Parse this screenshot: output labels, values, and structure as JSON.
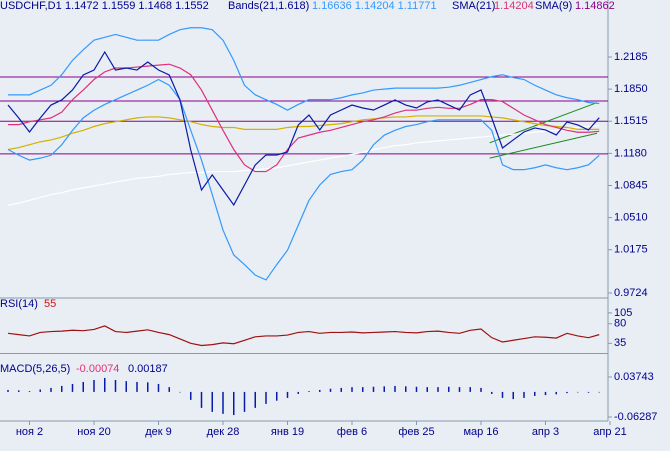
{
  "chart_data": [
    {
      "type": "line",
      "title": "USDCHF,D1",
      "ohlc": "1.1472 1.1559 1.1468 1.1552",
      "indicators": [
        {
          "name": "Bands(21,1.618)",
          "readout": "1.16636 1.14204 1.11771"
        },
        {
          "name": "SMA(21)",
          "readout": "1.14204"
        },
        {
          "name": "SMA(9)",
          "readout": "1.14862"
        }
      ],
      "categories": [
        null,
        null,
        "ноя 2",
        null,
        null,
        null,
        null,
        null,
        "ноя 20",
        null,
        null,
        null,
        null,
        null,
        "дек 9",
        null,
        null,
        null,
        null,
        null,
        "дек 28",
        null,
        null,
        null,
        null,
        null,
        "янв 19",
        null,
        null,
        null,
        null,
        null,
        "фев 6",
        null,
        null,
        null,
        null,
        null,
        "фев 25",
        null,
        null,
        null,
        null,
        null,
        "мар 16",
        null,
        null,
        null,
        null,
        null,
        "апр 3",
        null,
        null,
        null,
        null,
        null,
        "апр 21"
      ],
      "series": [
        {
          "color": "#ffffff",
          "values": [
            1.064,
            1.066,
            1.069,
            1.072,
            1.075,
            1.077,
            1.08,
            1.082,
            1.084,
            1.086,
            1.088,
            1.09,
            1.092,
            1.093,
            1.094,
            1.096,
            1.097,
            1.098,
            1.098,
            1.099,
            1.099,
            1.099,
            1.1,
            1.101,
            1.102,
            1.103,
            1.105,
            1.107,
            1.109,
            1.111,
            1.113,
            1.115,
            1.117,
            1.119,
            1.122,
            1.124,
            1.126,
            1.127,
            1.129,
            1.13,
            1.131,
            1.132,
            1.133,
            1.134,
            1.135,
            1.136,
            1.137,
            1.138,
            1.139,
            1.14,
            1.141,
            1.142,
            1.143,
            1.145,
            1.146,
            1.147,
            null
          ]
        },
        {
          "color": "#d4b000",
          "values": [
            1.122,
            1.124,
            1.127,
            1.13,
            1.132,
            1.135,
            1.139,
            1.142,
            1.146,
            1.149,
            1.151,
            1.153,
            1.155,
            1.156,
            1.156,
            1.155,
            1.153,
            1.151,
            1.148,
            1.146,
            1.145,
            1.145,
            1.143,
            1.143,
            1.143,
            1.143,
            1.145,
            1.146,
            1.146,
            1.147,
            1.148,
            1.149,
            1.151,
            1.153,
            1.154,
            1.155,
            1.156,
            1.156,
            1.157,
            1.157,
            1.157,
            1.157,
            1.157,
            1.157,
            1.157,
            1.156,
            1.155,
            1.153,
            1.151,
            1.149,
            1.147,
            1.146,
            1.145,
            1.143,
            1.143,
            1.143,
            null
          ]
        },
        {
          "color": "#3399ff",
          "values": [
            1.179,
            1.179,
            1.179,
            1.184,
            1.189,
            1.2,
            1.215,
            1.226,
            1.236,
            1.239,
            1.242,
            1.239,
            1.236,
            1.236,
            1.236,
            1.242,
            1.247,
            1.249,
            1.249,
            1.247,
            1.236,
            1.215,
            1.189,
            1.179,
            1.174,
            1.169,
            1.163,
            1.169,
            1.174,
            1.174,
            1.174,
            1.176,
            1.179,
            1.181,
            1.184,
            1.185,
            1.186,
            1.186,
            1.186,
            1.186,
            1.186,
            1.187,
            1.189,
            1.192,
            1.195,
            1.198,
            1.2,
            1.197,
            1.195,
            1.189,
            1.184,
            1.179,
            1.176,
            1.174,
            1.171,
            1.17,
            null
          ]
        },
        {
          "color": "#3399ff",
          "values": [
            1.122,
            1.116,
            1.111,
            1.113,
            1.116,
            1.127,
            1.142,
            1.155,
            1.163,
            1.169,
            1.174,
            1.179,
            1.184,
            1.189,
            1.195,
            1.189,
            1.174,
            1.142,
            1.111,
            1.075,
            1.038,
            1.012,
            1.002,
            0.991,
            0.986,
            1.002,
            1.017,
            1.043,
            1.069,
            1.085,
            1.096,
            1.099,
            1.101,
            1.111,
            1.127,
            1.137,
            1.142,
            1.146,
            1.148,
            1.151,
            1.153,
            1.153,
            1.153,
            1.153,
            1.153,
            1.142,
            1.106,
            1.101,
            1.101,
            1.103,
            1.106,
            1.103,
            1.101,
            1.103,
            1.106,
            1.116,
            null
          ]
        },
        {
          "color": "#e0307a",
          "values": [
            1.148,
            1.148,
            1.151,
            1.153,
            1.155,
            1.161,
            1.174,
            1.184,
            1.195,
            1.203,
            1.207,
            1.207,
            1.208,
            1.209,
            1.21,
            1.211,
            1.207,
            1.2,
            1.184,
            1.163,
            1.142,
            1.122,
            1.106,
            1.099,
            1.099,
            1.106,
            1.122,
            1.134,
            1.137,
            1.14,
            1.142,
            1.145,
            1.148,
            1.151,
            1.153,
            1.156,
            1.16,
            1.163,
            1.163,
            1.165,
            1.166,
            1.165,
            1.165,
            1.169,
            1.174,
            1.174,
            1.172,
            1.165,
            1.158,
            1.153,
            1.148,
            1.145,
            1.142,
            1.14,
            1.14,
            1.141,
            null
          ]
        },
        {
          "color": "#0a1aa8",
          "values": [
            1.1684,
            1.1549,
            1.1403,
            1.1549,
            1.1684,
            1.1737,
            1.1841,
            1.1997,
            1.2049,
            1.2237,
            1.2049,
            1.207,
            1.2049,
            1.2133,
            1.2049,
            1.1997,
            1.1737,
            1.1215,
            1.0798,
            1.0955,
            1.0798,
            1.0642,
            1.085,
            1.1059,
            1.1163,
            1.1163,
            1.1194,
            1.1476,
            1.158,
            1.1424,
            1.158,
            1.1632,
            1.1684,
            1.1653,
            1.1632,
            1.1684,
            1.1737,
            1.1684,
            1.1653,
            1.1716,
            1.1737,
            1.1684,
            1.1632,
            1.1789,
            1.1841,
            1.1549,
            1.1236,
            1.132,
            1.1403,
            1.1445,
            1.1424,
            1.1372,
            1.1507,
            1.1476,
            1.1424,
            1.1552,
            null
          ]
        }
      ],
      "levels": [
        1.1976,
        1.1726,
        1.1515,
        1.1174
      ],
      "level_color": "#8b008b",
      "channel": [
        [
          1.129,
          1.171
        ],
        [
          1.113,
          1.139
        ]
      ],
      "channel_color": "#1a8a1a",
      "ylim": [
        0.9682,
        1.2675
      ],
      "yticks": [
        1.2185,
        {
          "value": 1.185,
          "label": "1.1850"
        },
        1.1515,
        {
          "value": 1.118,
          "label": "1.1180"
        },
        1.0845,
        {
          "value": 1.051,
          "label": "1.0510"
        },
        1.0175,
        0.9724
      ]
    },
    {
      "type": "line",
      "title": "RSI(14)",
      "readout": "55",
      "series": [
        {
          "color": "#a01010",
          "values": [
            58,
            55,
            52,
            60,
            62,
            63,
            65,
            64,
            67,
            75,
            62,
            60,
            63,
            66,
            60,
            55,
            45,
            35,
            30,
            32,
            36,
            34,
            42,
            50,
            52,
            52,
            54,
            60,
            62,
            58,
            60,
            60,
            61,
            59,
            60,
            61,
            62,
            60,
            59,
            62,
            63,
            60,
            58,
            65,
            68,
            48,
            38,
            42,
            46,
            50,
            49,
            47,
            58,
            52,
            48,
            55,
            null
          ]
        }
      ],
      "ylim": [
        15,
        137
      ],
      "yticks": [
        105,
        80,
        35
      ]
    },
    {
      "type": "bar",
      "title": "MACD(5,26,5)",
      "readouts": [
        "-0.00074",
        "0.00187"
      ],
      "color": "#0a1aa8",
      "values": [
        0.005,
        0.004,
        0.002,
        0.006,
        0.01,
        0.015,
        0.02,
        0.025,
        0.03,
        0.035,
        0.03,
        0.027,
        0.025,
        0.024,
        0.02,
        0.012,
        0.0,
        -0.02,
        -0.04,
        -0.05,
        -0.055,
        -0.058,
        -0.05,
        -0.04,
        -0.03,
        -0.022,
        -0.015,
        -0.005,
        0.002,
        0.005,
        0.008,
        0.01,
        0.012,
        0.012,
        0.013,
        0.014,
        0.015,
        0.014,
        0.013,
        0.012,
        0.012,
        0.013,
        0.012,
        0.012,
        0.01,
        -0.005,
        -0.015,
        -0.018,
        -0.015,
        -0.01,
        -0.008,
        -0.006,
        -0.003,
        -0.001,
        -0.002,
        -0.001,
        null
      ],
      "ylim": [
        -0.0704,
        0.0926
      ],
      "yticks": [
        0.03743,
        -0.06287
      ]
    }
  ]
}
